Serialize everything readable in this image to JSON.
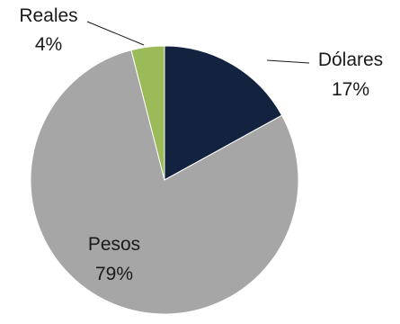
{
  "chart_data": {
    "type": "pie",
    "categories": [
      "Dólares",
      "Pesos",
      "Reales"
    ],
    "values": [
      17,
      79,
      4
    ],
    "labels": [
      {
        "name": "Dólares",
        "pct": "17%"
      },
      {
        "name": "Pesos",
        "pct": "79%"
      },
      {
        "name": "Reales",
        "pct": "4%"
      }
    ],
    "colors": [
      "#13233f",
      "#a6a6a6",
      "#9bbb59"
    ],
    "start_angle_deg": 0,
    "direction": "clockwise",
    "legend": "none",
    "title": ""
  }
}
